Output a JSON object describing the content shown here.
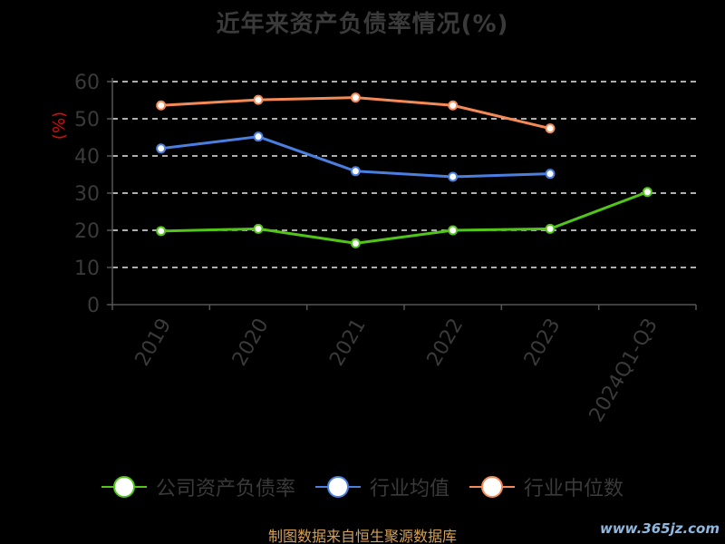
{
  "chart_data": {
    "type": "line",
    "title": "近年来资产负债率情况(%)",
    "ylabel": "(%)",
    "xlabel": "",
    "ylim": [
      0,
      60
    ],
    "yticks": [
      0,
      10,
      20,
      30,
      40,
      50,
      60
    ],
    "grid": true,
    "legend_position": "bottom",
    "categories": [
      "2019",
      "2020",
      "2021",
      "2022",
      "2023",
      "2024Q1-Q3"
    ],
    "series": [
      {
        "name": "公司资产负债率",
        "color": "#52c41a",
        "values": [
          19.8,
          20.4,
          16.5,
          20.0,
          20.4,
          30.3
        ]
      },
      {
        "name": "行业均值",
        "color": "#4a7fe0",
        "values": [
          42.0,
          45.2,
          35.9,
          34.4,
          35.2,
          null
        ]
      },
      {
        "name": "行业中位数",
        "color": "#f48a55",
        "values": [
          53.6,
          55.1,
          55.7,
          53.6,
          47.4,
          null
        ]
      }
    ]
  },
  "footer": {
    "source": "制图数据来自恒生聚源数据库",
    "watermark": "www.365jz.com"
  }
}
